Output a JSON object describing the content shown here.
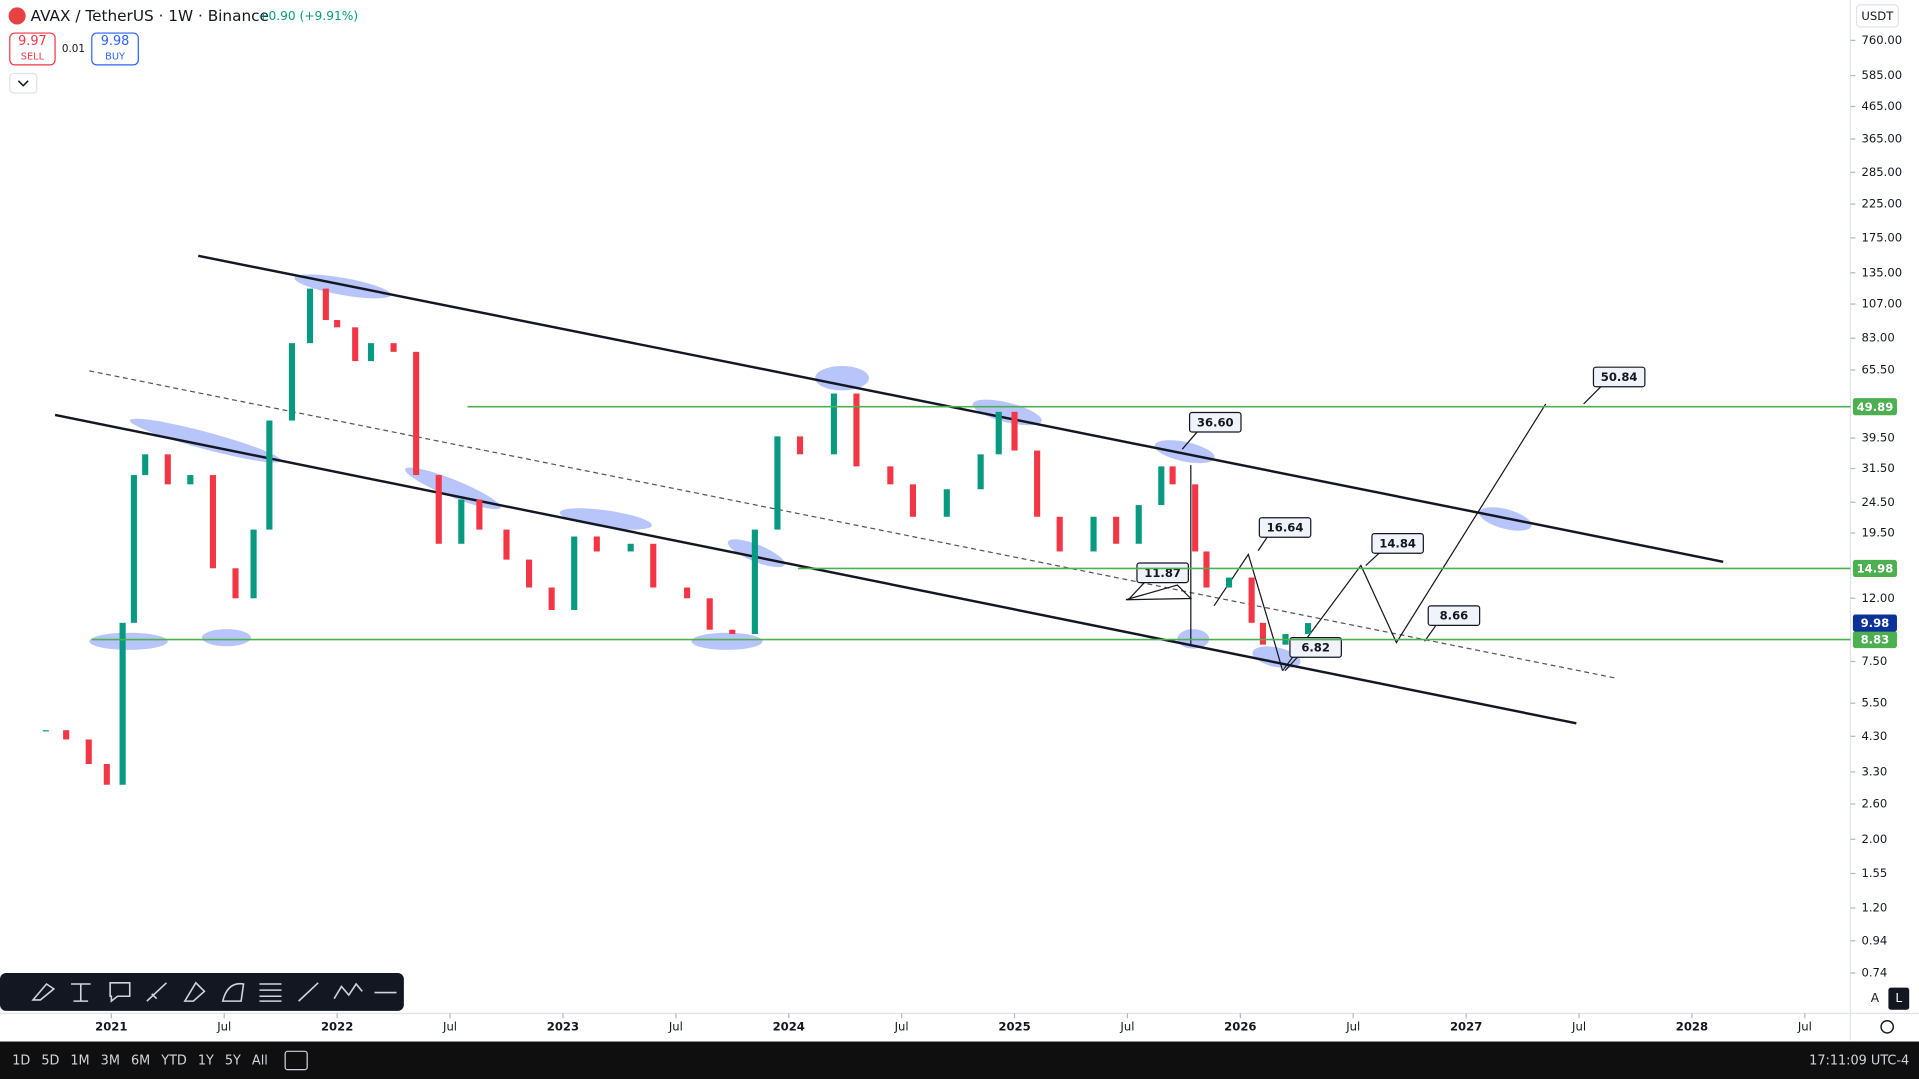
{
  "header": {
    "title": "AVAX / TetherUS · 1W · Binance",
    "change": "+0.90 (+9.91%)",
    "sell_price": "9.97",
    "sell_label": "SELL",
    "spread": "0.01",
    "buy_price": "9.98",
    "buy_label": "BUY"
  },
  "price_axis": {
    "currency": "USDT",
    "auto": "A",
    "log": "L"
  },
  "chart_data": {
    "type": "candlestick",
    "log_scale": true,
    "up_color": "#089981",
    "down_color": "#f23645",
    "level_color": "#4caf50",
    "last_price": 9.98,
    "last_price_color": "#0c3299",
    "levels": [
      49.89,
      14.98,
      8.83
    ],
    "x": [
      2020.71,
      2020.8,
      2020.9,
      2020.98,
      2021.05,
      2021.1,
      2021.15,
      2021.25,
      2021.35,
      2021.45,
      2021.55,
      2021.63,
      2021.7,
      2021.8,
      2021.88,
      2021.95,
      2022.0,
      2022.08,
      2022.15,
      2022.25,
      2022.35,
      2022.45,
      2022.55,
      2022.63,
      2022.75,
      2022.85,
      2022.95,
      2023.05,
      2023.15,
      2023.3,
      2023.4,
      2023.55,
      2023.65,
      2023.75,
      2023.85,
      2023.95,
      2024.05,
      2024.2,
      2024.3,
      2024.45,
      2024.55,
      2024.7,
      2024.85,
      2024.93,
      2025.0,
      2025.1,
      2025.2,
      2025.35,
      2025.45,
      2025.55,
      2025.65,
      2025.7,
      2025.8,
      2025.85,
      2025.95,
      2026.05,
      2026.1,
      2026.2,
      2026.3
    ],
    "values": [
      4.5,
      4.2,
      3.5,
      3.0,
      10,
      30,
      35,
      28,
      30,
      15,
      12,
      20,
      45,
      80,
      120,
      95,
      90,
      70,
      80,
      75,
      30,
      18,
      25,
      20,
      16,
      13,
      11,
      19,
      17,
      18,
      13,
      12,
      9.5,
      9.2,
      20,
      40,
      35,
      55,
      32,
      28,
      22,
      27,
      35,
      48,
      36,
      22,
      17,
      22,
      18,
      24,
      32,
      28,
      17,
      13,
      14,
      10,
      8.5,
      9.2,
      9.98
    ],
    "xlim": [
      2020.507,
      2028.702
    ],
    "ylim": [
      0.548,
      1026
    ],
    "xticks": [
      2021,
      {
        "value": 2021.5,
        "label": "Jul"
      },
      2022,
      {
        "value": 2022.5,
        "label": "Jul"
      },
      2023,
      {
        "value": 2023.5,
        "label": "Jul"
      },
      2024,
      {
        "value": 2024.5,
        "label": "Jul"
      },
      2025,
      {
        "value": 2025.5,
        "label": "Jul"
      },
      2026,
      {
        "value": 2026.5,
        "label": "Jul"
      },
      2027,
      {
        "value": 2027.5,
        "label": "Jul"
      },
      2028,
      {
        "value": 2028.5,
        "label": "Jul"
      }
    ],
    "yticks": [
      {
        "value": 760,
        "label": "760.00"
      },
      {
        "value": 585,
        "label": "585.00"
      },
      {
        "value": 465,
        "label": "465.00"
      },
      {
        "value": 365,
        "label": "365.00"
      },
      {
        "value": 285,
        "label": "285.00"
      },
      {
        "value": 225,
        "label": "225.00"
      },
      {
        "value": 175,
        "label": "175.00"
      },
      {
        "value": 135,
        "label": "135.00"
      },
      {
        "value": 107,
        "label": "107.00"
      },
      {
        "value": 83,
        "label": "83.00"
      },
      {
        "value": 65.5,
        "label": "65.50"
      },
      {
        "value": 39.5,
        "label": "39.50"
      },
      {
        "value": 31.5,
        "label": "31.50"
      },
      {
        "value": 24.5,
        "label": "24.50"
      },
      {
        "value": 19.5,
        "label": "19.50"
      },
      {
        "value": 12,
        "label": "12.00"
      },
      {
        "value": 7.5,
        "label": "7.50"
      },
      {
        "value": 5.5,
        "label": "5.50"
      },
      {
        "value": 4.3,
        "label": "4.30"
      },
      {
        "value": 3.3,
        "label": "3.30"
      },
      {
        "value": 2.6,
        "label": "2.60"
      },
      {
        "value": 2,
        "label": "2.00"
      },
      {
        "value": 1.55,
        "label": "1.55"
      },
      {
        "value": 1.2,
        "label": "1.20"
      },
      {
        "value": 0.94,
        "label": "0.94"
      },
      {
        "value": 0.74,
        "label": "0.74"
      }
    ],
    "annotations": [
      "50.84",
      "36.60",
      "16.64",
      "14.84",
      "11.87",
      "8.66",
      "6.82"
    ]
  },
  "footer": {
    "ranges": [
      "1D",
      "5D",
      "1M",
      "3M",
      "6M",
      "YTD",
      "1Y",
      "5Y",
      "All"
    ],
    "clock": "17:11:09 UTC-4"
  }
}
